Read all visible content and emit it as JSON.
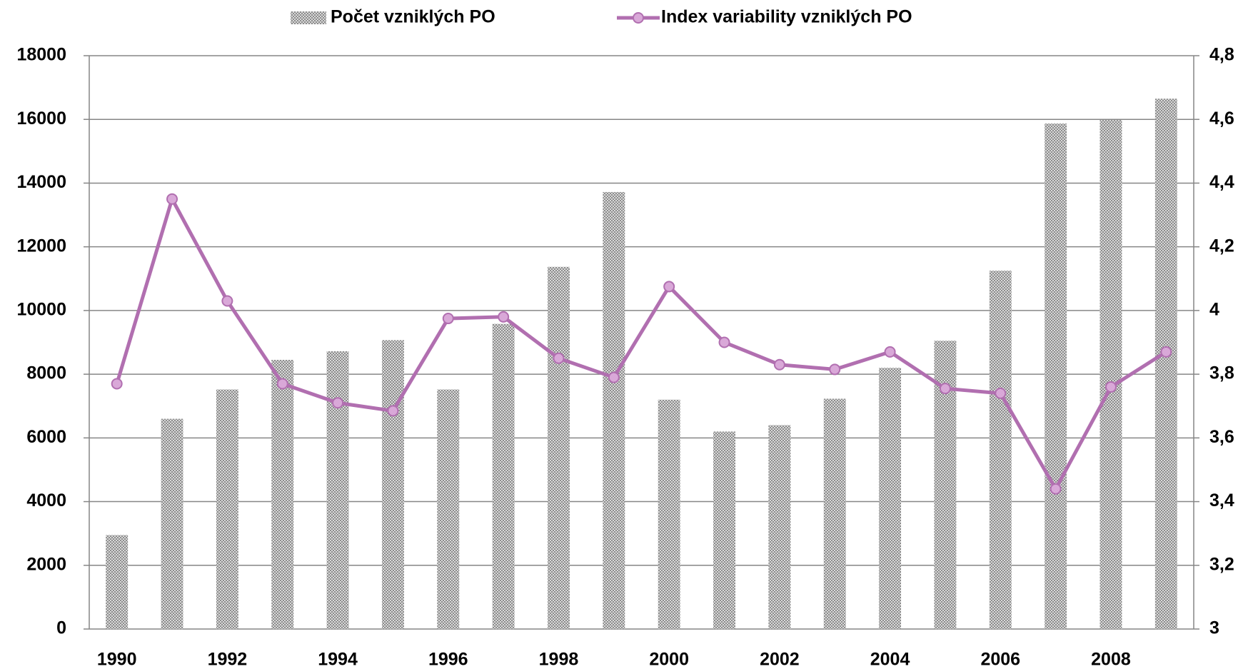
{
  "chart_data": {
    "type": "bar_line",
    "categories": [
      "1990",
      null,
      "1992",
      null,
      "1994",
      null,
      "1996",
      null,
      "1998",
      null,
      "2000",
      null,
      "2002",
      null,
      "2004",
      null,
      "2006",
      null,
      "2008",
      null
    ],
    "series": [
      {
        "name": "Počet vzniklých PO",
        "type": "bar",
        "color": "#a6a6a6",
        "axis": "y",
        "values": [
          2950,
          6600,
          7520,
          8450,
          8720,
          9070,
          7520,
          9580,
          11370,
          13720,
          7200,
          6200,
          6400,
          7230,
          8200,
          9050,
          11250,
          15870,
          15980,
          16650
        ]
      },
      {
        "name": "Index variability vzniklých PO",
        "type": "line",
        "color": "#b16fb0",
        "marker_color": "#d9a8d8",
        "axis": "y2",
        "values": [
          3.77,
          4.35,
          4.03,
          3.77,
          3.71,
          3.685,
          3.975,
          3.98,
          3.85,
          3.79,
          4.075,
          3.9,
          3.83,
          3.815,
          3.87,
          3.755,
          3.74,
          3.44,
          3.76,
          3.87
        ]
      }
    ],
    "ylim": [
      0,
      18000
    ],
    "yticks": [
      0,
      2000,
      4000,
      6000,
      8000,
      10000,
      12000,
      14000,
      16000,
      18000
    ],
    "y2lim": [
      3,
      4.8
    ],
    "y2ticks": [
      3,
      {
        "value": 3.2,
        "label": "3,2"
      },
      {
        "value": 3.4,
        "label": "3,4"
      },
      {
        "value": 3.6,
        "label": "3,6"
      },
      {
        "value": 3.8,
        "label": "3,8"
      },
      4,
      {
        "value": 4.2,
        "label": "4,2"
      },
      {
        "value": 4.4,
        "label": "4,4"
      },
      {
        "value": 4.6,
        "label": "4,6"
      },
      {
        "value": 4.8,
        "label": "4,8"
      }
    ],
    "grid": true,
    "legend": "top"
  }
}
